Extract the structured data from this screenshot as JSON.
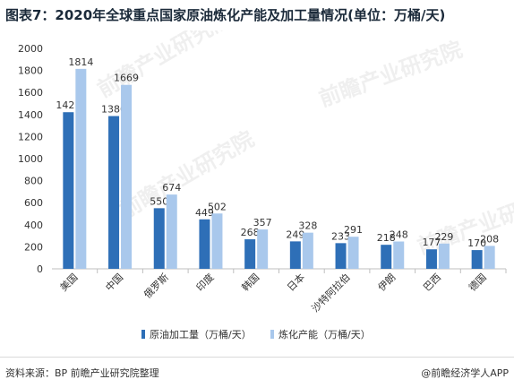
{
  "title": "图表7：2020年全球重点国家原油炼化产能及加工量情况(单位：万桶/天)",
  "source": "资料来源：BP 前瞻产业研究院整理",
  "brand": "@前瞻经济学人APP",
  "watermark": "前瞻产业研究院",
  "colors": {
    "processing": "#2e6fb7",
    "capacity": "#a9c8ec",
    "axis": "#bfbfbf"
  },
  "chart_data": {
    "type": "bar",
    "title": "图表7：2020年全球重点国家原油炼化产能及加工量情况(单位：万桶/天)",
    "xlabel": "",
    "ylabel": "",
    "ylim": [
      0,
      2000
    ],
    "yticks": [
      0,
      200,
      400,
      600,
      800,
      1000,
      1200,
      1400,
      1600,
      1800,
      2000
    ],
    "grid": false,
    "legend": "bottom",
    "categories": [
      "美国",
      "中国",
      "俄罗斯",
      "印度",
      "韩国",
      "日本",
      "沙特阿拉伯",
      "伊朗",
      "巴西",
      "德国"
    ],
    "series": [
      {
        "name": "原油加工量（万桶/天）",
        "values": [
          1421,
          1386,
          550,
          449,
          268,
          249,
          233,
          218,
          177,
          170
        ]
      },
      {
        "name": "炼化产能（万桶/天）",
        "values": [
          1814,
          1669,
          674,
          502,
          357,
          328,
          291,
          248,
          229,
          208
        ]
      }
    ]
  }
}
